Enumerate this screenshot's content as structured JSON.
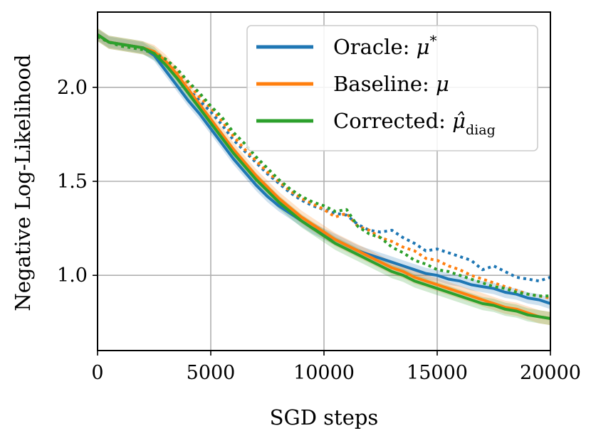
{
  "chart_data": {
    "type": "line",
    "xlabel": "SGD steps",
    "ylabel": "Negative Log-Likelihood",
    "xlim": [
      0,
      20000
    ],
    "ylim": [
      0.6,
      2.4
    ],
    "xticks": [
      0,
      5000,
      10000,
      15000,
      20000
    ],
    "xtick_labels": [
      "0",
      "5000",
      "10000",
      "15000",
      "20000"
    ],
    "yticks": [
      1.0,
      1.5,
      2.0
    ],
    "ytick_labels": [
      "1.0",
      "1.5",
      "2.0"
    ],
    "grid": true,
    "legend_position": "top-right",
    "series": [
      {
        "name": "Oracle: μ*",
        "legend_main": "Oracle: ",
        "legend_math": "μ",
        "legend_sup": "*",
        "legend_sub": "",
        "color": "#1f77b4",
        "x": [
          0,
          500,
          1000,
          1500,
          2000,
          2500,
          3000,
          3500,
          4000,
          4500,
          5000,
          5500,
          6000,
          6500,
          7000,
          7500,
          8000,
          8500,
          9000,
          9500,
          10000,
          10500,
          11000,
          11500,
          12000,
          12500,
          13000,
          13500,
          14000,
          14500,
          15000,
          15500,
          16000,
          16500,
          17000,
          17500,
          18000,
          18500,
          19000,
          19500,
          20000
        ],
        "solid": [
          2.28,
          2.24,
          2.23,
          2.22,
          2.21,
          2.17,
          2.09,
          2.01,
          1.93,
          1.86,
          1.78,
          1.7,
          1.62,
          1.55,
          1.48,
          1.42,
          1.37,
          1.33,
          1.29,
          1.25,
          1.22,
          1.19,
          1.16,
          1.13,
          1.11,
          1.09,
          1.07,
          1.05,
          1.03,
          1.01,
          1.0,
          0.98,
          0.97,
          0.95,
          0.94,
          0.93,
          0.91,
          0.9,
          0.88,
          0.87,
          0.85
        ],
        "band": 0.03,
        "dotted": [
          2.27,
          2.24,
          2.23,
          2.22,
          2.21,
          2.18,
          2.12,
          2.06,
          1.99,
          1.93,
          1.87,
          1.8,
          1.72,
          1.66,
          1.6,
          1.54,
          1.49,
          1.44,
          1.4,
          1.37,
          1.35,
          1.33,
          1.32,
          1.27,
          1.24,
          1.23,
          1.24,
          1.2,
          1.17,
          1.13,
          1.14,
          1.12,
          1.1,
          1.08,
          1.03,
          1.05,
          1.02,
          0.99,
          0.98,
          0.97,
          0.99
        ]
      },
      {
        "name": "Baseline: μ",
        "legend_main": "Baseline: ",
        "legend_math": "μ",
        "legend_sup": "",
        "legend_sub": "",
        "color": "#ff7f0e",
        "x": [
          0,
          500,
          1000,
          1500,
          2000,
          2500,
          3000,
          3500,
          4000,
          4500,
          5000,
          5500,
          6000,
          6500,
          7000,
          7500,
          8000,
          8500,
          9000,
          9500,
          10000,
          10500,
          11000,
          11500,
          12000,
          12500,
          13000,
          13500,
          14000,
          14500,
          15000,
          15500,
          16000,
          16500,
          17000,
          17500,
          18000,
          18500,
          19000,
          19500,
          20000
        ],
        "solid": [
          2.28,
          2.24,
          2.23,
          2.22,
          2.21,
          2.19,
          2.14,
          2.07,
          1.99,
          1.91,
          1.83,
          1.75,
          1.67,
          1.6,
          1.53,
          1.47,
          1.41,
          1.36,
          1.31,
          1.27,
          1.23,
          1.19,
          1.16,
          1.13,
          1.1,
          1.07,
          1.04,
          1.02,
          0.99,
          0.97,
          0.95,
          0.93,
          0.91,
          0.89,
          0.87,
          0.85,
          0.83,
          0.82,
          0.8,
          0.78,
          0.77
        ],
        "band": 0.035,
        "dotted": [
          2.27,
          2.24,
          2.23,
          2.22,
          2.21,
          2.19,
          2.15,
          2.09,
          2.02,
          1.95,
          1.89,
          1.82,
          1.74,
          1.67,
          1.61,
          1.55,
          1.5,
          1.45,
          1.41,
          1.38,
          1.35,
          1.31,
          1.33,
          1.26,
          1.24,
          1.2,
          1.18,
          1.15,
          1.13,
          1.09,
          1.08,
          1.05,
          1.03,
          1.0,
          0.98,
          0.96,
          0.94,
          0.92,
          0.9,
          0.89,
          0.88
        ]
      },
      {
        "name": "Corrected: μ̂_diag",
        "legend_main": "Corrected: ",
        "legend_math": "μ̂",
        "legend_sup": "",
        "legend_sub": "diag",
        "color": "#2ca02c",
        "x": [
          0,
          500,
          1000,
          1500,
          2000,
          2500,
          3000,
          3500,
          4000,
          4500,
          5000,
          5500,
          6000,
          6500,
          7000,
          7500,
          8000,
          8500,
          9000,
          9500,
          10000,
          10500,
          11000,
          11500,
          12000,
          12500,
          13000,
          13500,
          14000,
          14500,
          15000,
          15500,
          16000,
          16500,
          17000,
          17500,
          18000,
          18500,
          19000,
          19500,
          20000
        ],
        "solid": [
          2.28,
          2.24,
          2.23,
          2.22,
          2.21,
          2.18,
          2.12,
          2.05,
          1.97,
          1.89,
          1.81,
          1.73,
          1.65,
          1.58,
          1.51,
          1.45,
          1.39,
          1.34,
          1.29,
          1.25,
          1.21,
          1.17,
          1.14,
          1.11,
          1.08,
          1.05,
          1.02,
          1.0,
          0.97,
          0.95,
          0.93,
          0.91,
          0.89,
          0.87,
          0.85,
          0.84,
          0.82,
          0.81,
          0.79,
          0.78,
          0.77
        ],
        "band": 0.035,
        "dotted": [
          2.27,
          2.24,
          2.22,
          2.21,
          2.2,
          2.18,
          2.15,
          2.1,
          2.03,
          1.97,
          1.9,
          1.84,
          1.76,
          1.7,
          1.63,
          1.57,
          1.51,
          1.46,
          1.42,
          1.39,
          1.37,
          1.34,
          1.35,
          1.26,
          1.22,
          1.2,
          1.15,
          1.12,
          1.08,
          1.06,
          1.03,
          1.02,
          1.0,
          0.98,
          0.96,
          0.94,
          0.93,
          0.91,
          0.9,
          0.89,
          0.89
        ]
      }
    ]
  }
}
